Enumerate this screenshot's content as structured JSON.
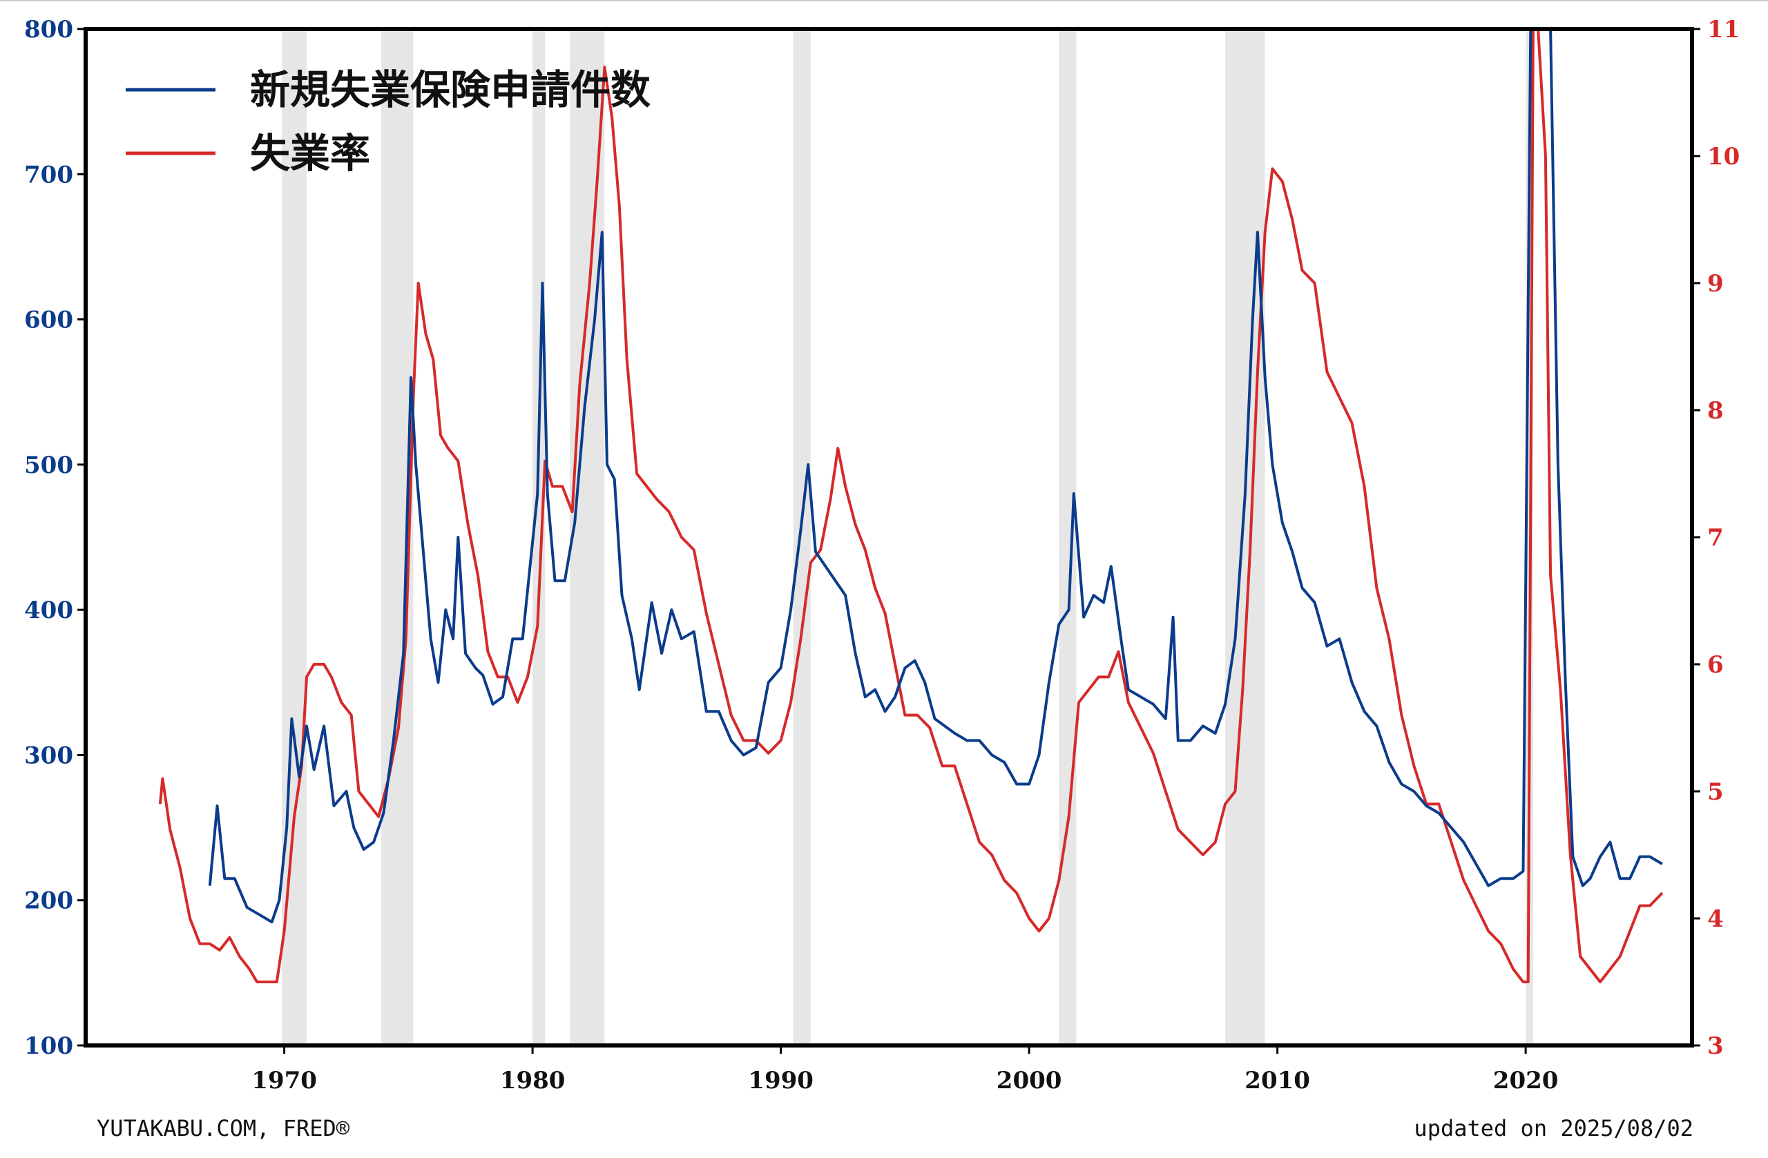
{
  "footer": {
    "source": "YUTAKABU.COM, FRED®",
    "updated": "updated on 2025/08/02"
  },
  "chart_data": {
    "type": "line",
    "title": "",
    "xlabel": "",
    "ylabel": "",
    "xlim": [
      1962.0,
      2026.7
    ],
    "ylim_left": [
      100,
      800
    ],
    "ylim_right": [
      3,
      11
    ],
    "x_ticks": [
      "1970",
      "1980",
      "1990",
      "2000",
      "2010",
      "2020"
    ],
    "y_ticks_left": [
      "100",
      "200",
      "300",
      "400",
      "500",
      "600",
      "700",
      "800"
    ],
    "y_ticks_right": [
      "3",
      "4",
      "5",
      "6",
      "7",
      "8",
      "9",
      "10",
      "11"
    ],
    "grid": false,
    "legend_position": "top-left",
    "colors": {
      "claims": "#0b3c8c",
      "unemployment": "#d62a2a",
      "recession": "#e6e6e6"
    },
    "recessions": [
      [
        1969.9,
        1970.9
      ],
      [
        1973.9,
        1975.2
      ],
      [
        1980.0,
        1980.5
      ],
      [
        1981.5,
        1982.9
      ],
      [
        1990.5,
        1991.2
      ],
      [
        2001.2,
        2001.9
      ],
      [
        2007.9,
        2009.5
      ],
      [
        2020.0,
        2020.3
      ]
    ],
    "series": [
      {
        "name": "新規失業保険申請件数",
        "axis": "left",
        "points": [
          [
            1967.0,
            210
          ],
          [
            1967.3,
            265
          ],
          [
            1967.6,
            215
          ],
          [
            1968.0,
            215
          ],
          [
            1968.5,
            195
          ],
          [
            1969.0,
            190
          ],
          [
            1969.5,
            185
          ],
          [
            1969.8,
            200
          ],
          [
            1970.1,
            250
          ],
          [
            1970.3,
            325
          ],
          [
            1970.6,
            285
          ],
          [
            1970.9,
            320
          ],
          [
            1971.2,
            290
          ],
          [
            1971.6,
            320
          ],
          [
            1972.0,
            265
          ],
          [
            1972.5,
            275
          ],
          [
            1972.8,
            250
          ],
          [
            1973.2,
            235
          ],
          [
            1973.6,
            240
          ],
          [
            1974.0,
            260
          ],
          [
            1974.4,
            310
          ],
          [
            1974.8,
            370
          ],
          [
            1975.1,
            560
          ],
          [
            1975.3,
            500
          ],
          [
            1975.6,
            440
          ],
          [
            1975.9,
            380
          ],
          [
            1976.2,
            350
          ],
          [
            1976.5,
            400
          ],
          [
            1976.8,
            380
          ],
          [
            1977.0,
            450
          ],
          [
            1977.3,
            370
          ],
          [
            1977.7,
            360
          ],
          [
            1978.0,
            355
          ],
          [
            1978.4,
            335
          ],
          [
            1978.8,
            340
          ],
          [
            1979.2,
            380
          ],
          [
            1979.6,
            380
          ],
          [
            1979.9,
            430
          ],
          [
            1980.2,
            480
          ],
          [
            1980.4,
            625
          ],
          [
            1980.6,
            480
          ],
          [
            1980.9,
            420
          ],
          [
            1981.3,
            420
          ],
          [
            1981.7,
            460
          ],
          [
            1982.1,
            540
          ],
          [
            1982.5,
            600
          ],
          [
            1982.8,
            660
          ],
          [
            1983.0,
            500
          ],
          [
            1983.3,
            490
          ],
          [
            1983.6,
            410
          ],
          [
            1984.0,
            380
          ],
          [
            1984.3,
            345
          ],
          [
            1984.8,
            405
          ],
          [
            1985.2,
            370
          ],
          [
            1985.6,
            400
          ],
          [
            1986.0,
            380
          ],
          [
            1986.5,
            385
          ],
          [
            1987.0,
            330
          ],
          [
            1987.5,
            330
          ],
          [
            1988.0,
            310
          ],
          [
            1988.5,
            300
          ],
          [
            1989.0,
            305
          ],
          [
            1989.5,
            350
          ],
          [
            1990.0,
            360
          ],
          [
            1990.4,
            400
          ],
          [
            1990.8,
            455
          ],
          [
            1991.1,
            500
          ],
          [
            1991.4,
            440
          ],
          [
            1991.8,
            430
          ],
          [
            1992.2,
            420
          ],
          [
            1992.6,
            410
          ],
          [
            1993.0,
            370
          ],
          [
            1993.4,
            340
          ],
          [
            1993.8,
            345
          ],
          [
            1994.2,
            330
          ],
          [
            1994.6,
            340
          ],
          [
            1995.0,
            360
          ],
          [
            1995.4,
            365
          ],
          [
            1995.8,
            350
          ],
          [
            1996.2,
            325
          ],
          [
            1996.6,
            320
          ],
          [
            1997.0,
            315
          ],
          [
            1997.5,
            310
          ],
          [
            1998.0,
            310
          ],
          [
            1998.5,
            300
          ],
          [
            1999.0,
            295
          ],
          [
            1999.5,
            280
          ],
          [
            2000.0,
            280
          ],
          [
            2000.4,
            300
          ],
          [
            2000.8,
            350
          ],
          [
            2001.2,
            390
          ],
          [
            2001.6,
            400
          ],
          [
            2001.8,
            480
          ],
          [
            2002.2,
            395
          ],
          [
            2002.6,
            410
          ],
          [
            2003.0,
            405
          ],
          [
            2003.3,
            430
          ],
          [
            2003.7,
            380
          ],
          [
            2004.0,
            345
          ],
          [
            2004.5,
            340
          ],
          [
            2005.0,
            335
          ],
          [
            2005.5,
            325
          ],
          [
            2005.8,
            395
          ],
          [
            2006.0,
            310
          ],
          [
            2006.5,
            310
          ],
          [
            2007.0,
            320
          ],
          [
            2007.5,
            315
          ],
          [
            2007.9,
            335
          ],
          [
            2008.3,
            380
          ],
          [
            2008.7,
            480
          ],
          [
            2009.0,
            600
          ],
          [
            2009.2,
            660
          ],
          [
            2009.5,
            560
          ],
          [
            2009.8,
            500
          ],
          [
            2010.2,
            460
          ],
          [
            2010.6,
            440
          ],
          [
            2011.0,
            415
          ],
          [
            2011.5,
            405
          ],
          [
            2012.0,
            375
          ],
          [
            2012.5,
            380
          ],
          [
            2013.0,
            350
          ],
          [
            2013.5,
            330
          ],
          [
            2014.0,
            320
          ],
          [
            2014.5,
            295
          ],
          [
            2015.0,
            280
          ],
          [
            2015.5,
            275
          ],
          [
            2016.0,
            265
          ],
          [
            2016.5,
            260
          ],
          [
            2017.0,
            250
          ],
          [
            2017.5,
            240
          ],
          [
            2018.0,
            225
          ],
          [
            2018.5,
            210
          ],
          [
            2019.0,
            215
          ],
          [
            2019.5,
            215
          ],
          [
            2019.9,
            220
          ],
          [
            2020.2,
            800
          ],
          [
            2020.6,
            800
          ],
          [
            2021.0,
            800
          ],
          [
            2021.3,
            500
          ],
          [
            2021.6,
            350
          ],
          [
            2021.9,
            230
          ],
          [
            2022.3,
            210
          ],
          [
            2022.6,
            215
          ],
          [
            2023.0,
            230
          ],
          [
            2023.4,
            240
          ],
          [
            2023.8,
            215
          ],
          [
            2024.2,
            215
          ],
          [
            2024.6,
            230
          ],
          [
            2025.0,
            230
          ],
          [
            2025.5,
            225
          ]
        ]
      },
      {
        "name": "失業率",
        "axis": "right",
        "points": [
          [
            1965.0,
            4.9
          ],
          [
            1965.1,
            5.1
          ],
          [
            1965.4,
            4.7
          ],
          [
            1965.8,
            4.4
          ],
          [
            1966.2,
            4.0
          ],
          [
            1966.6,
            3.8
          ],
          [
            1967.0,
            3.8
          ],
          [
            1967.4,
            3.75
          ],
          [
            1967.8,
            3.85
          ],
          [
            1968.2,
            3.7
          ],
          [
            1968.6,
            3.6
          ],
          [
            1968.9,
            3.5
          ],
          [
            1969.3,
            3.5
          ],
          [
            1969.7,
            3.5
          ],
          [
            1970.0,
            3.9
          ],
          [
            1970.4,
            4.8
          ],
          [
            1970.7,
            5.2
          ],
          [
            1970.9,
            5.9
          ],
          [
            1971.2,
            6.0
          ],
          [
            1971.6,
            6.0
          ],
          [
            1971.9,
            5.9
          ],
          [
            1972.3,
            5.7
          ],
          [
            1972.7,
            5.6
          ],
          [
            1973.0,
            5.0
          ],
          [
            1973.4,
            4.9
          ],
          [
            1973.8,
            4.8
          ],
          [
            1974.2,
            5.1
          ],
          [
            1974.6,
            5.5
          ],
          [
            1974.9,
            6.2
          ],
          [
            1975.2,
            8.1
          ],
          [
            1975.4,
            9.0
          ],
          [
            1975.7,
            8.6
          ],
          [
            1976.0,
            8.4
          ],
          [
            1976.3,
            7.8
          ],
          [
            1976.6,
            7.7
          ],
          [
            1977.0,
            7.6
          ],
          [
            1977.4,
            7.1
          ],
          [
            1977.8,
            6.7
          ],
          [
            1978.2,
            6.1
          ],
          [
            1978.6,
            5.9
          ],
          [
            1979.0,
            5.9
          ],
          [
            1979.4,
            5.7
          ],
          [
            1979.8,
            5.9
          ],
          [
            1980.2,
            6.3
          ],
          [
            1980.5,
            7.6
          ],
          [
            1980.8,
            7.4
          ],
          [
            1981.2,
            7.4
          ],
          [
            1981.6,
            7.2
          ],
          [
            1981.9,
            8.2
          ],
          [
            1982.3,
            9.0
          ],
          [
            1982.6,
            9.8
          ],
          [
            1982.9,
            10.7
          ],
          [
            1983.2,
            10.3
          ],
          [
            1983.5,
            9.6
          ],
          [
            1983.8,
            8.4
          ],
          [
            1984.2,
            7.5
          ],
          [
            1984.6,
            7.4
          ],
          [
            1985.0,
            7.3
          ],
          [
            1985.5,
            7.2
          ],
          [
            1986.0,
            7.0
          ],
          [
            1986.5,
            6.9
          ],
          [
            1987.0,
            6.4
          ],
          [
            1987.5,
            6.0
          ],
          [
            1988.0,
            5.6
          ],
          [
            1988.5,
            5.4
          ],
          [
            1989.0,
            5.4
          ],
          [
            1989.5,
            5.3
          ],
          [
            1990.0,
            5.4
          ],
          [
            1990.4,
            5.7
          ],
          [
            1990.8,
            6.2
          ],
          [
            1991.2,
            6.8
          ],
          [
            1991.6,
            6.9
          ],
          [
            1992.0,
            7.3
          ],
          [
            1992.3,
            7.7
          ],
          [
            1992.6,
            7.4
          ],
          [
            1993.0,
            7.1
          ],
          [
            1993.4,
            6.9
          ],
          [
            1993.8,
            6.6
          ],
          [
            1994.2,
            6.4
          ],
          [
            1994.6,
            6.0
          ],
          [
            1995.0,
            5.6
          ],
          [
            1995.5,
            5.6
          ],
          [
            1996.0,
            5.5
          ],
          [
            1996.5,
            5.2
          ],
          [
            1997.0,
            5.2
          ],
          [
            1997.5,
            4.9
          ],
          [
            1998.0,
            4.6
          ],
          [
            1998.5,
            4.5
          ],
          [
            1999.0,
            4.3
          ],
          [
            1999.5,
            4.2
          ],
          [
            2000.0,
            4.0
          ],
          [
            2000.4,
            3.9
          ],
          [
            2000.8,
            4.0
          ],
          [
            2001.2,
            4.3
          ],
          [
            2001.6,
            4.8
          ],
          [
            2002.0,
            5.7
          ],
          [
            2002.4,
            5.8
          ],
          [
            2002.8,
            5.9
          ],
          [
            2003.2,
            5.9
          ],
          [
            2003.6,
            6.1
          ],
          [
            2004.0,
            5.7
          ],
          [
            2004.5,
            5.5
          ],
          [
            2005.0,
            5.3
          ],
          [
            2005.5,
            5.0
          ],
          [
            2006.0,
            4.7
          ],
          [
            2006.5,
            4.6
          ],
          [
            2007.0,
            4.5
          ],
          [
            2007.5,
            4.6
          ],
          [
            2007.9,
            4.9
          ],
          [
            2008.3,
            5.0
          ],
          [
            2008.6,
            5.8
          ],
          [
            2008.9,
            6.9
          ],
          [
            2009.2,
            8.3
          ],
          [
            2009.5,
            9.4
          ],
          [
            2009.8,
            9.9
          ],
          [
            2010.2,
            9.8
          ],
          [
            2010.6,
            9.5
          ],
          [
            2011.0,
            9.1
          ],
          [
            2011.5,
            9.0
          ],
          [
            2012.0,
            8.3
          ],
          [
            2012.5,
            8.1
          ],
          [
            2013.0,
            7.9
          ],
          [
            2013.5,
            7.4
          ],
          [
            2014.0,
            6.6
          ],
          [
            2014.5,
            6.2
          ],
          [
            2015.0,
            5.6
          ],
          [
            2015.5,
            5.2
          ],
          [
            2016.0,
            4.9
          ],
          [
            2016.5,
            4.9
          ],
          [
            2017.0,
            4.6
          ],
          [
            2017.5,
            4.3
          ],
          [
            2018.0,
            4.1
          ],
          [
            2018.5,
            3.9
          ],
          [
            2019.0,
            3.8
          ],
          [
            2019.5,
            3.6
          ],
          [
            2019.9,
            3.5
          ],
          [
            2020.1,
            3.5
          ],
          [
            2020.3,
            11.0
          ],
          [
            2020.5,
            11.0
          ],
          [
            2020.8,
            10.0
          ],
          [
            2021.0,
            6.7
          ],
          [
            2021.4,
            5.8
          ],
          [
            2021.8,
            4.5
          ],
          [
            2022.2,
            3.7
          ],
          [
            2022.6,
            3.6
          ],
          [
            2023.0,
            3.5
          ],
          [
            2023.4,
            3.6
          ],
          [
            2023.8,
            3.7
          ],
          [
            2024.2,
            3.9
          ],
          [
            2024.6,
            4.1
          ],
          [
            2025.0,
            4.1
          ],
          [
            2025.5,
            4.2
          ]
        ]
      }
    ]
  }
}
